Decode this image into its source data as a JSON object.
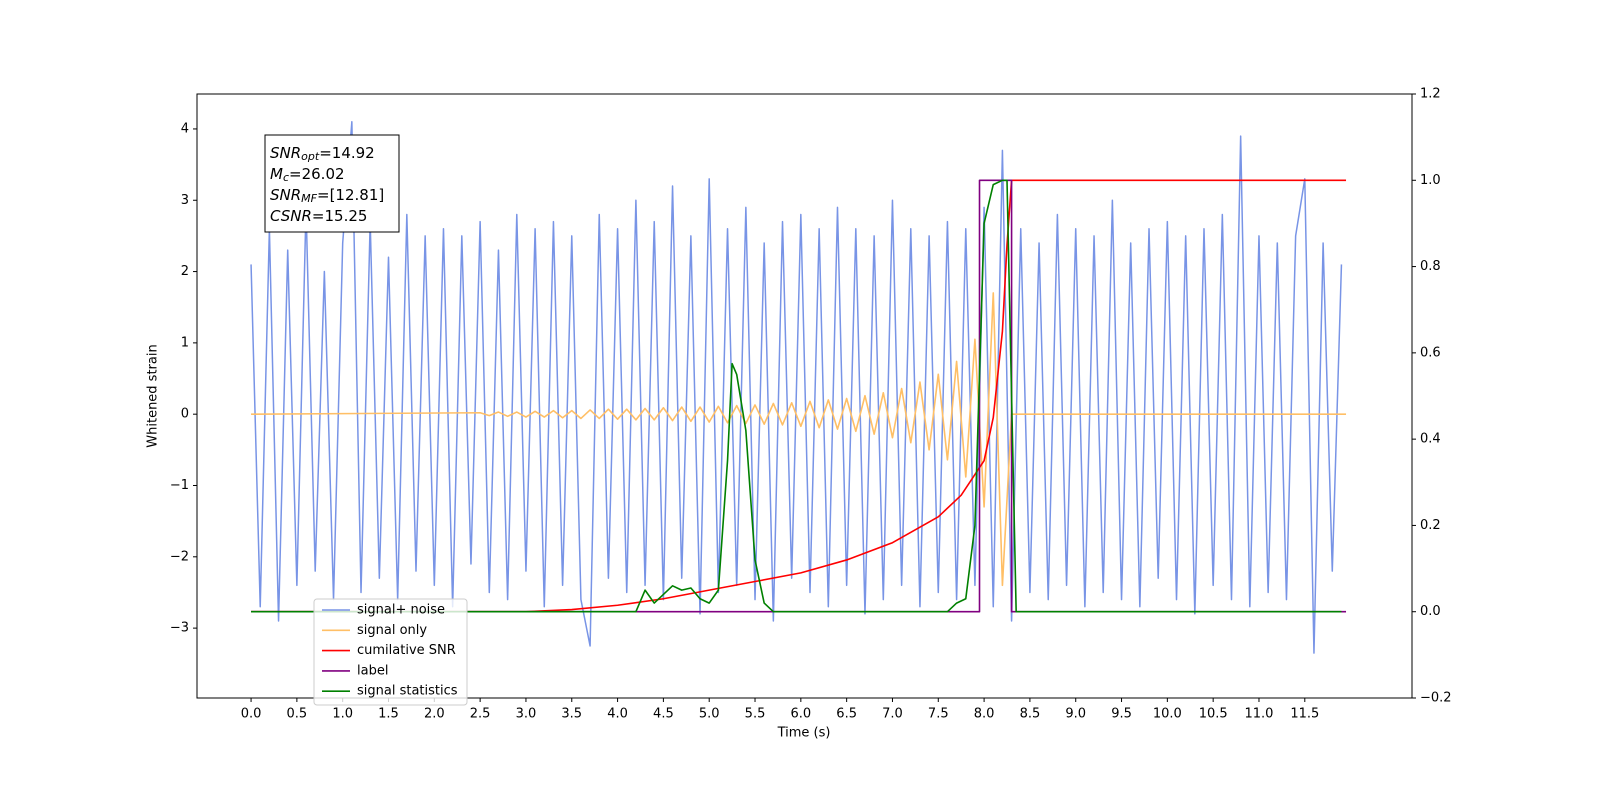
{
  "chart_data": {
    "type": "line",
    "xlabel": "Time (s)",
    "ylabel": "Whitened strain",
    "xlim": [
      -0.59,
      12.67
    ],
    "ylim": [
      -3.98,
      4.49
    ],
    "y2lim": [
      -0.2,
      1.2
    ],
    "xticks": [
      {
        "value": 0,
        "label": "0.0"
      },
      0.5,
      {
        "value": 1,
        "label": "1.0"
      },
      1.5,
      {
        "value": 2,
        "label": "2.0"
      },
      2.5,
      {
        "value": 3,
        "label": "3.0"
      },
      3.5,
      {
        "value": 4,
        "label": "4.0"
      },
      4.5,
      {
        "value": 5,
        "label": "5.0"
      },
      5.5,
      {
        "value": 6,
        "label": "6.0"
      },
      6.5,
      {
        "value": 7,
        "label": "7.0"
      },
      7.5,
      {
        "value": 8,
        "label": "8.0"
      },
      8.5,
      {
        "value": 9,
        "label": "9.0"
      },
      9.5,
      {
        "value": 10,
        "label": "10.0"
      },
      10.5,
      {
        "value": 11,
        "label": "11.0"
      },
      11.5
    ],
    "yticks": [
      {
        "value": -3,
        "label": "−3"
      },
      {
        "value": -2,
        "label": "−2"
      },
      {
        "value": -1,
        "label": "−1"
      },
      0,
      1,
      2,
      3,
      4
    ],
    "y2ticks": [
      {
        "value": -0.2,
        "label": "−0.2"
      },
      {
        "value": 0,
        "label": "0.0"
      },
      0.2,
      0.4,
      0.6,
      0.8,
      {
        "value": 1,
        "label": "1.0"
      },
      1.2
    ],
    "grid": false,
    "legend": "lower left",
    "annotations": [
      {
        "symbol": "SNR",
        "subscript": "opt",
        "text": "=14.92"
      },
      {
        "symbol": "M",
        "subscript": "c",
        "text": "=26.02"
      },
      {
        "symbol": "SNR",
        "subscript": "MF",
        "text": "=[12.81]"
      },
      {
        "symbol": "CSNR",
        "text": "=15.25"
      }
    ],
    "series": [
      {
        "name": "signal+ noise",
        "color": "#7894e6",
        "x": [
          0,
          0.1,
          0.2,
          0.3,
          0.4,
          0.5,
          0.6,
          0.7,
          0.8,
          0.9,
          1,
          1.1,
          1.2,
          1.3,
          1.4,
          1.5,
          1.6,
          1.7,
          1.8,
          1.9,
          2,
          2.1,
          2.2,
          2.3,
          2.4,
          2.5,
          2.6,
          2.7,
          2.8,
          2.9,
          3,
          3.1,
          3.2,
          3.3,
          3.4,
          3.5,
          3.6,
          3.7,
          3.8,
          3.9,
          4,
          4.1,
          4.2,
          4.3,
          4.4,
          4.5,
          4.6,
          4.7,
          4.8,
          4.9,
          5,
          5.1,
          5.2,
          5.3,
          5.4,
          5.5,
          5.6,
          5.7,
          5.8,
          5.9,
          6,
          6.1,
          6.2,
          6.3,
          6.4,
          6.5,
          6.6,
          6.7,
          6.8,
          6.9,
          7,
          7.1,
          7.2,
          7.3,
          7.4,
          7.5,
          7.6,
          7.7,
          7.8,
          7.9,
          8,
          8.1,
          8.2,
          8.3,
          8.4,
          8.5,
          8.6,
          8.7,
          8.8,
          8.9,
          9,
          9.1,
          9.2,
          9.3,
          9.4,
          9.5,
          9.6,
          9.7,
          9.8,
          9.9,
          10,
          10.1,
          10.2,
          10.3,
          10.4,
          10.5,
          10.6,
          10.7,
          10.8,
          10.9,
          11,
          11.1,
          11.2,
          11.3,
          11.4,
          11.5,
          11.6,
          11.7,
          11.8,
          11.9
        ],
        "values": [
          2.1,
          -2.7,
          2.6,
          -2.9,
          2.3,
          -2.4,
          2.9,
          -2.2,
          2.0,
          -2.6,
          2.4,
          4.1,
          -2.5,
          2.7,
          -2.3,
          2.2,
          -2.6,
          2.8,
          -2.2,
          2.5,
          -2.4,
          2.6,
          -2.7,
          2.5,
          -2.1,
          2.7,
          -2.5,
          2.3,
          -2.6,
          2.8,
          -2.2,
          2.6,
          -2.7,
          2.7,
          -2.4,
          2.5,
          -2.6,
          -3.25,
          2.8,
          -2.3,
          2.6,
          -2.5,
          3.0,
          -2.4,
          2.7,
          -2.6,
          3.2,
          -2.3,
          2.5,
          -2.8,
          3.3,
          -2.5,
          2.6,
          -2.4,
          2.9,
          -2.6,
          2.4,
          -2.9,
          2.7,
          -2.3,
          2.8,
          -2.5,
          2.6,
          -2.7,
          2.9,
          -2.4,
          2.6,
          -2.8,
          2.5,
          -2.6,
          3.0,
          -2.4,
          2.6,
          -2.7,
          2.5,
          -2.5,
          2.7,
          -2.6,
          2.6,
          -2.4,
          2.9,
          -2.7,
          3.7,
          -2.9,
          2.6,
          -2.5,
          2.4,
          -2.6,
          2.8,
          -2.4,
          2.6,
          -2.7,
          2.5,
          -2.5,
          3.0,
          -2.6,
          2.4,
          -2.7,
          2.6,
          -2.3,
          2.7,
          -2.6,
          2.5,
          -2.8,
          2.6,
          -2.4,
          2.8,
          -2.6,
          3.9,
          -2.7,
          2.5,
          -2.5,
          2.4,
          -2.6,
          2.5,
          3.3,
          -3.35,
          2.4,
          -2.2,
          2.1
        ]
      },
      {
        "name": "signal only",
        "color": "#ffbf66",
        "x": [
          0,
          2.5,
          2.6,
          2.7,
          2.8,
          2.9,
          3,
          3.1,
          3.2,
          3.3,
          3.4,
          3.5,
          3.6,
          3.7,
          3.8,
          3.9,
          4,
          4.1,
          4.2,
          4.3,
          4.4,
          4.5,
          4.6,
          4.7,
          4.8,
          4.9,
          5,
          5.1,
          5.2,
          5.3,
          5.4,
          5.5,
          5.6,
          5.7,
          5.8,
          5.9,
          6,
          6.1,
          6.2,
          6.3,
          6.4,
          6.5,
          6.6,
          6.7,
          6.8,
          6.9,
          7,
          7.1,
          7.2,
          7.3,
          7.4,
          7.5,
          7.6,
          7.7,
          7.8,
          7.9,
          8,
          8.1,
          8.2,
          8.3,
          11.95
        ],
        "values": [
          0,
          0.02,
          -0.02,
          0.03,
          -0.03,
          0.03,
          -0.04,
          0.04,
          -0.04,
          0.05,
          -0.05,
          0.05,
          -0.06,
          0.06,
          -0.06,
          0.07,
          -0.07,
          0.07,
          -0.08,
          0.08,
          -0.08,
          0.09,
          -0.09,
          0.1,
          -0.1,
          0.1,
          -0.11,
          0.11,
          -0.12,
          0.12,
          -0.13,
          0.13,
          -0.14,
          0.15,
          -0.15,
          0.16,
          -0.17,
          0.18,
          -0.19,
          0.2,
          -0.21,
          0.22,
          -0.24,
          0.26,
          -0.28,
          0.3,
          -0.33,
          0.36,
          -0.4,
          0.45,
          -0.5,
          0.56,
          -0.64,
          0.74,
          -0.88,
          1.05,
          -1.3,
          1.7,
          -2.4,
          0,
          0
        ]
      },
      {
        "name": "cumilative SNR",
        "color": "#ff0000",
        "axis": "y2",
        "x": [
          0,
          3,
          3.5,
          4,
          4.5,
          5,
          5.5,
          6,
          6.5,
          7,
          7.5,
          7.75,
          8,
          8.1,
          8.2,
          8.25,
          8.3,
          11.95
        ],
        "values": [
          0,
          0,
          0.005,
          0.015,
          0.03,
          0.05,
          0.07,
          0.09,
          0.12,
          0.16,
          0.22,
          0.27,
          0.35,
          0.45,
          0.65,
          0.85,
          1,
          1
        ]
      },
      {
        "name": "label",
        "color": "#800080",
        "axis": "y2",
        "x": [
          0,
          7.95,
          7.95,
          8.3,
          8.3,
          11.95
        ],
        "values": [
          0,
          0,
          1,
          1,
          0,
          0
        ]
      },
      {
        "name": "signal statistics",
        "color": "#008000",
        "axis": "y2",
        "x": [
          0,
          4.2,
          4.3,
          4.4,
          4.5,
          4.6,
          4.7,
          4.8,
          4.9,
          5,
          5.1,
          5.2,
          5.25,
          5.3,
          5.4,
          5.5,
          5.6,
          5.7,
          7.6,
          7.7,
          7.8,
          7.9,
          8,
          8.1,
          8.2,
          8.25,
          8.3,
          8.35,
          11.9
        ],
        "values": [
          0,
          0,
          0.05,
          0.02,
          0.04,
          0.06,
          0.05,
          0.055,
          0.03,
          0.02,
          0.05,
          0.35,
          0.575,
          0.55,
          0.42,
          0.12,
          0.02,
          0,
          0,
          0.02,
          0.03,
          0.2,
          0.9,
          0.99,
          1,
          1,
          0.5,
          0,
          0
        ]
      }
    ]
  }
}
